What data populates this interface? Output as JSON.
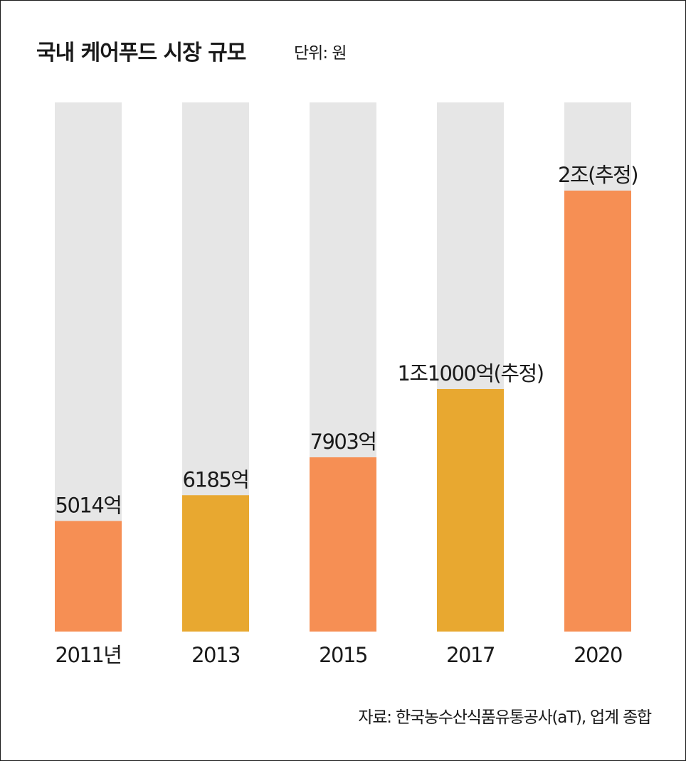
{
  "header": {
    "title": "국내 케어푸드 시장 규모",
    "unit": "단위: 원"
  },
  "footer": {
    "source": "자료: 한국농수산식품유통공사(aT), 업계 종합"
  },
  "colors": {
    "track": "#e6e6e6",
    "orange": "#f68f54",
    "gold": "#e8a830"
  },
  "chart_data": {
    "type": "bar",
    "categories": [
      "2011년",
      "2013",
      "2015",
      "2017",
      "2020"
    ],
    "values": [
      5014,
      6185,
      7903,
      11000,
      20000
    ],
    "value_unit": "억 원",
    "data_labels": [
      "5014억",
      "6185억",
      "7903억",
      "1조1000억(추정)",
      "2조(추정)"
    ],
    "bar_colors": [
      "#f68f54",
      "#e8a830",
      "#f68f54",
      "#e8a830",
      "#f68f54"
    ],
    "title": "국내 케어푸드 시장 규모",
    "xlabel": "",
    "ylabel": "",
    "ylim": [
      0,
      24000
    ],
    "grid": false,
    "legend": "none"
  }
}
